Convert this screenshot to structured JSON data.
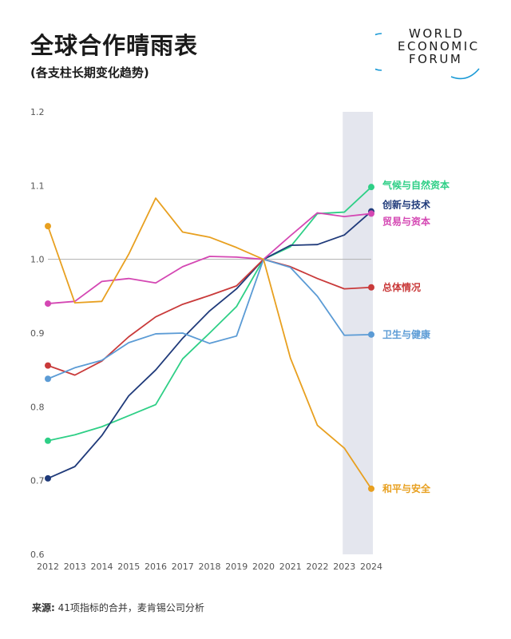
{
  "header": {
    "title": "全球合作晴雨表",
    "subtitle": "(各支柱长期变化趋势)"
  },
  "logo": {
    "line1": "WORLD",
    "line2": "ECONOMIC",
    "line3": "FORUM"
  },
  "source": {
    "label": "来源:",
    "text": "41项指标的合并，麦肯锡公司分析"
  },
  "colors": {
    "grid_baseline": "#b0b0b0",
    "shade": "#e4e6ee",
    "tick_text": "#555555"
  },
  "chart_data": {
    "type": "line",
    "x": [
      "2012",
      "2013",
      "2014",
      "2015",
      "2016",
      "2017",
      "2018",
      "2019",
      "2020",
      "2021",
      "2022",
      "2023",
      "2024"
    ],
    "ylim": [
      0.6,
      1.2
    ],
    "yticks": [
      0.6,
      0.7,
      0.8,
      0.9,
      1.0,
      1.1,
      1.2
    ],
    "ytick_labels": [
      "0.6",
      "0.7",
      "0.8",
      "0.9",
      "1.0",
      "1.1",
      "1.2"
    ],
    "baseline": 1.0,
    "shaded_range": [
      "2023",
      "2024"
    ],
    "series": [
      {
        "name": "气候与自然资本",
        "color": "#2ecf86",
        "values": [
          0.754,
          0.762,
          0.773,
          0.788,
          0.803,
          0.865,
          0.9,
          0.936,
          1.0,
          1.017,
          1.062,
          1.064,
          1.098
        ]
      },
      {
        "name": "创新与技术",
        "color": "#1f3a7a",
        "values": [
          0.703,
          0.719,
          0.761,
          0.815,
          0.85,
          0.893,
          0.93,
          0.96,
          1.0,
          1.019,
          1.02,
          1.033,
          1.065
        ]
      },
      {
        "name": "贸易与资本",
        "color": "#d447b3",
        "values": [
          0.94,
          0.943,
          0.97,
          0.974,
          0.968,
          0.99,
          1.004,
          1.003,
          1.0,
          1.032,
          1.063,
          1.058,
          1.062
        ]
      },
      {
        "name": "总体情况",
        "color": "#c93a3a",
        "values": [
          0.856,
          0.843,
          0.862,
          0.895,
          0.922,
          0.939,
          0.951,
          0.964,
          1.0,
          0.99,
          0.974,
          0.96,
          0.962
        ]
      },
      {
        "name": "卫生与健康",
        "color": "#5b9bd5",
        "values": [
          0.838,
          0.853,
          0.863,
          0.887,
          0.899,
          0.9,
          0.886,
          0.896,
          1.0,
          0.989,
          0.95,
          0.897,
          0.898
        ]
      },
      {
        "name": "和平与安全",
        "color": "#e8a020",
        "values": [
          1.045,
          0.941,
          0.943,
          1.007,
          1.083,
          1.037,
          1.03,
          1.016,
          1.0,
          0.866,
          0.775,
          0.744,
          0.689
        ]
      }
    ]
  }
}
